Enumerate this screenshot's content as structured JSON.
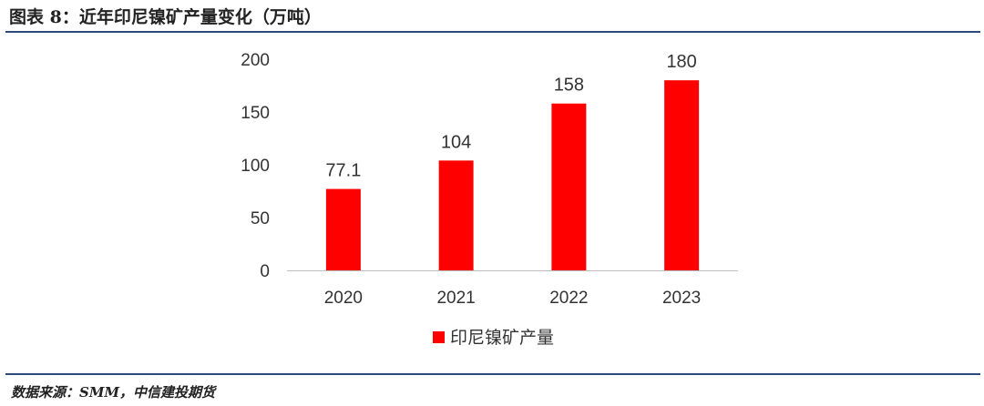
{
  "header": {
    "title": "图表 8：近年印尼镍矿产量变化（万吨）"
  },
  "footer": {
    "source": "数据来源：SMM，中信建投期货"
  },
  "chart_data": {
    "type": "bar",
    "title": "近年印尼镍矿产量变化（万吨）",
    "categories": [
      "2020",
      "2021",
      "2022",
      "2023"
    ],
    "series": [
      {
        "name": "印尼镍矿产量",
        "values": [
          77.1,
          104,
          158,
          180
        ],
        "color": "#ff0000"
      }
    ],
    "data_labels": [
      "77.1",
      "104",
      "158",
      "180"
    ],
    "y_ticks": [
      "0",
      "50",
      "100",
      "150",
      "200"
    ],
    "ylim": [
      0,
      200
    ],
    "grid": false,
    "legend_position": "bottom-center"
  }
}
